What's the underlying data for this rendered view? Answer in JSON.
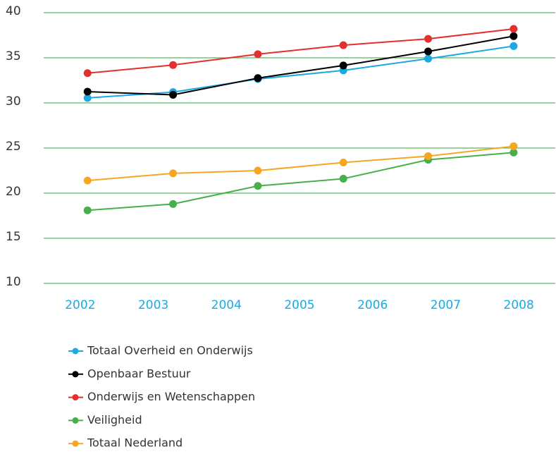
{
  "chart_data": {
    "type": "line",
    "x": [
      2002.1,
      2003.27,
      2004.43,
      2005.6,
      2006.76,
      2007.93
    ],
    "xlim": [
      2001.5,
      2008.5
    ],
    "xticks": [
      2002,
      2003,
      2004,
      2005,
      2006,
      2007,
      2008
    ],
    "ylim": [
      10,
      40
    ],
    "yticks": [
      10,
      15,
      20,
      25,
      30,
      35,
      40
    ],
    "grid": true,
    "legend": "bottom",
    "series": [
      {
        "name": "Totaal Overheid en Onderwijs",
        "color": "#1ba9e1",
        "values": [
          30.55,
          31.2,
          32.65,
          33.6,
          34.9,
          36.3
        ]
      },
      {
        "name": "Openbaar Bestuur",
        "color": "#000000",
        "values": [
          31.25,
          30.9,
          32.75,
          34.15,
          35.7,
          37.4
        ]
      },
      {
        "name": "Onderwijs en Wetenschappen",
        "color": "#e3302f",
        "values": [
          33.3,
          34.2,
          35.4,
          36.4,
          37.1,
          38.2
        ]
      },
      {
        "name": "Veiligheid",
        "color": "#46b04a",
        "values": [
          18.1,
          18.8,
          20.8,
          21.6,
          23.7,
          24.5
        ]
      },
      {
        "name": "Totaal Nederland",
        "color": "#f5a623",
        "values": [
          21.4,
          22.2,
          22.5,
          23.4,
          24.1,
          25.2
        ]
      }
    ]
  }
}
